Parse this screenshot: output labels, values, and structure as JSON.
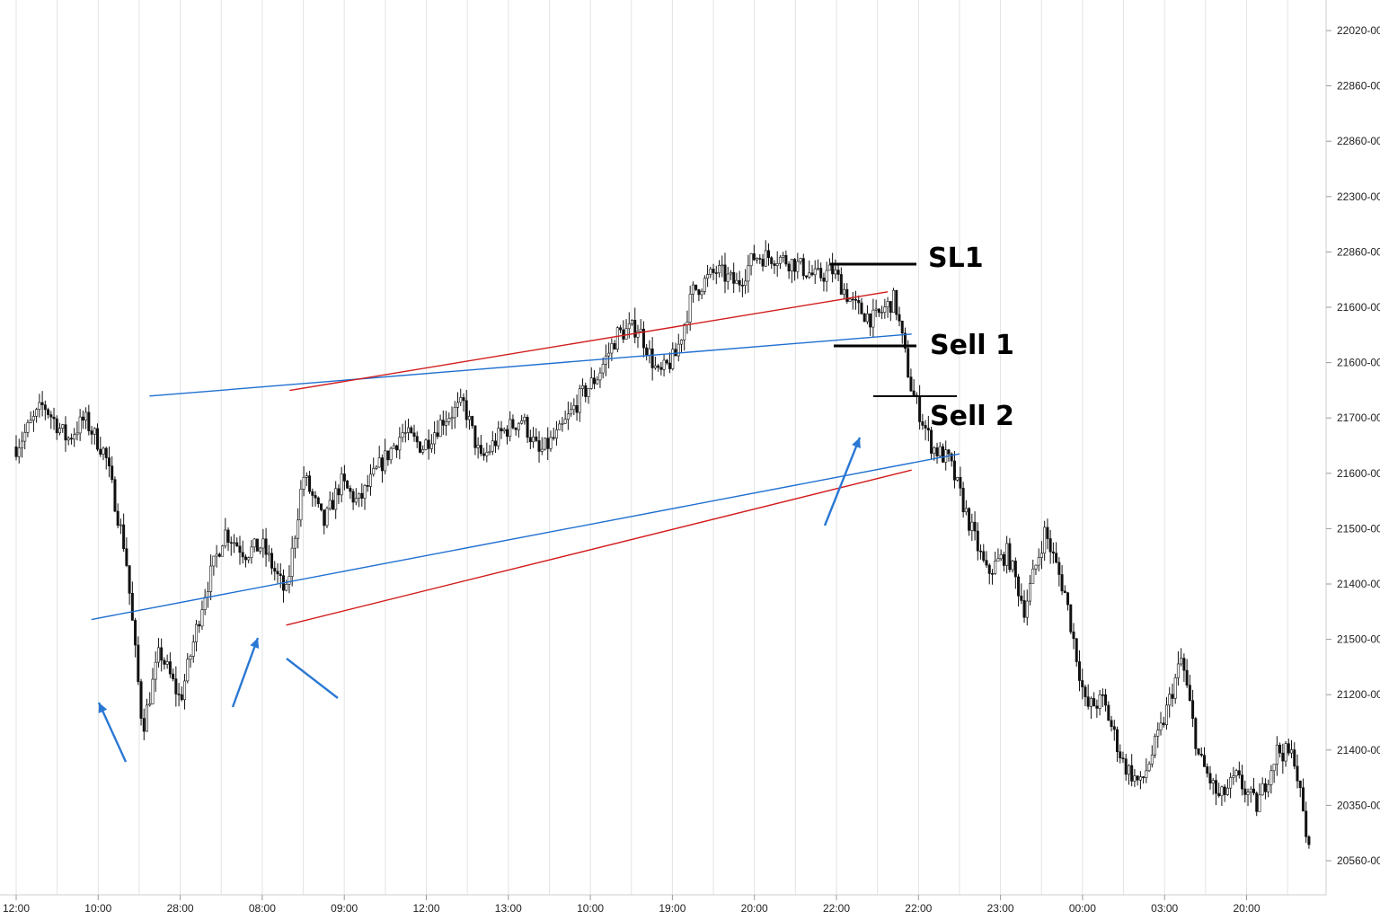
{
  "chart_data": {
    "type": "candlestick",
    "title": "",
    "xlabel": "",
    "ylabel": "",
    "grid": "vertical",
    "x_tick_labels": [
      "12:00",
      "10:00",
      "28:00",
      "08:00",
      "09:00",
      "12:00",
      "13:00",
      "10:00",
      "19:00",
      "20:00",
      "22:00",
      "22:00",
      "23:00",
      "00:00",
      "03:00",
      "20:00"
    ],
    "y_tick_labels": [
      "22020-00",
      "22860-00",
      "22860-00",
      "22300-00",
      "22860-00",
      "21600-00",
      "21600-00",
      "21700-00",
      "21600-00",
      "21500-00",
      "21400-00",
      "21500-00",
      "21200-00",
      "21400-00",
      "20350-00",
      "20560-00"
    ],
    "price_path": [
      [
        0,
        21600
      ],
      [
        0.8,
        21660
      ],
      [
        1.5,
        21610
      ],
      [
        2.0,
        21640
      ],
      [
        2.6,
        21590
      ],
      [
        3.2,
        21450
      ],
      [
        3.7,
        21200
      ],
      [
        4.2,
        21310
      ],
      [
        4.8,
        21240
      ],
      [
        5.5,
        21390
      ],
      [
        6.1,
        21480
      ],
      [
        6.7,
        21450
      ],
      [
        7.2,
        21460
      ],
      [
        7.9,
        21390
      ],
      [
        8.4,
        21560
      ],
      [
        9.0,
        21490
      ],
      [
        9.5,
        21550
      ],
      [
        10.0,
        21520
      ],
      [
        10.6,
        21570
      ],
      [
        11.3,
        21620
      ],
      [
        11.9,
        21600
      ],
      [
        12.5,
        21640
      ],
      [
        13.1,
        21660
      ],
      [
        13.6,
        21580
      ],
      [
        14.2,
        21620
      ],
      [
        14.8,
        21640
      ],
      [
        15.3,
        21590
      ],
      [
        15.9,
        21620
      ],
      [
        16.5,
        21670
      ],
      [
        17.0,
        21700
      ],
      [
        17.6,
        21760
      ],
      [
        18.2,
        21770
      ],
      [
        18.8,
        21700
      ],
      [
        19.3,
        21730
      ],
      [
        19.8,
        21820
      ],
      [
        20.5,
        21850
      ],
      [
        21.1,
        21830
      ],
      [
        21.6,
        21870
      ],
      [
        22.2,
        21870
      ],
      [
        22.8,
        21860
      ],
      [
        23.4,
        21840
      ],
      [
        23.9,
        21850
      ],
      [
        24.5,
        21800
      ],
      [
        25.1,
        21780
      ],
      [
        25.7,
        21810
      ],
      [
        26.2,
        21680
      ],
      [
        26.8,
        21600
      ],
      [
        27.3,
        21580
      ],
      [
        27.9,
        21490
      ],
      [
        28.4,
        21420
      ],
      [
        29.0,
        21450
      ],
      [
        29.5,
        21370
      ],
      [
        30.1,
        21480
      ],
      [
        30.7,
        21390
      ],
      [
        31.3,
        21230
      ],
      [
        31.8,
        21240
      ],
      [
        32.4,
        21150
      ],
      [
        32.9,
        21120
      ],
      [
        33.5,
        21200
      ],
      [
        34.1,
        21300
      ],
      [
        34.6,
        21160
      ],
      [
        35.2,
        21100
      ],
      [
        35.7,
        21130
      ],
      [
        36.3,
        21090
      ],
      [
        36.9,
        21170
      ],
      [
        37.4,
        21160
      ],
      [
        37.9,
        21000
      ]
    ],
    "support_line": [
      [
        2.2,
        21355
      ],
      [
        27.6,
        21590
      ]
    ],
    "resistance_line": [
      [
        3.9,
        21672
      ],
      [
        26.2,
        21760
      ]
    ],
    "upper_channel_line": [
      [
        8.0,
        21680
      ],
      [
        25.5,
        21820
      ]
    ],
    "lower_channel_line": [
      [
        7.9,
        21347
      ],
      [
        26.2,
        21567
      ]
    ],
    "annotations": [
      {
        "text": "SL1",
        "price": 21810
      },
      {
        "text": "Sell 1",
        "price": 21620
      },
      {
        "text": "Sell 2",
        "price": 21591
      }
    ]
  }
}
